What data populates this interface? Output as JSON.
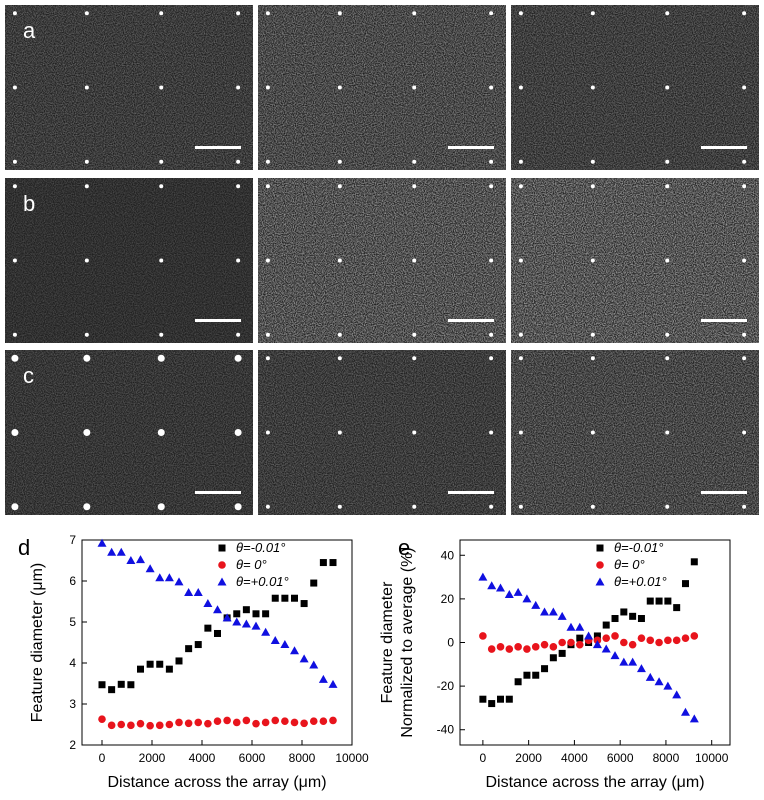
{
  "image_panels": {
    "labels": [
      "a",
      "b",
      "c"
    ]
  },
  "chart_data": [
    {
      "type": "scatter",
      "label": "d",
      "x_label": "Distance across the array (μm)",
      "y_label": [
        "Feature diameter (μm)"
      ],
      "x": [
        0,
        385,
        770,
        1155,
        1540,
        1925,
        2310,
        2695,
        3080,
        3465,
        3850,
        4235,
        4620,
        5005,
        5390,
        5775,
        6160,
        6545,
        6930,
        7315,
        7700,
        8085,
        8470,
        8855,
        9240
      ],
      "xlim": [
        -800,
        10000
      ],
      "xticks": [
        0,
        2000,
        4000,
        6000,
        8000,
        10000
      ],
      "ylim": [
        2,
        7
      ],
      "yticks": [
        2,
        3,
        4,
        5,
        6,
        7
      ],
      "legend": "top-right",
      "series": [
        {
          "name": "θ=-0.01°",
          "color": "#000000",
          "marker": "square",
          "values": [
            3.47,
            3.35,
            3.48,
            3.47,
            3.85,
            3.97,
            3.97,
            3.85,
            4.05,
            4.35,
            4.45,
            4.85,
            4.72,
            5.1,
            5.2,
            5.3,
            5.2,
            5.2,
            5.58,
            5.58,
            5.58,
            5.45,
            5.95,
            6.45,
            6.45
          ]
        },
        {
          "name": "θ=  0°",
          "color": "#e8141c",
          "marker": "circle",
          "values": [
            2.63,
            2.48,
            2.5,
            2.48,
            2.52,
            2.47,
            2.48,
            2.5,
            2.55,
            2.53,
            2.55,
            2.52,
            2.58,
            2.6,
            2.55,
            2.6,
            2.52,
            2.55,
            2.6,
            2.58,
            2.55,
            2.53,
            2.58,
            2.58,
            2.6
          ]
        },
        {
          "name": "θ=+0.01°",
          "color": "#1010e0",
          "marker": "triangle",
          "values": [
            6.92,
            6.7,
            6.7,
            6.5,
            6.52,
            6.3,
            6.08,
            6.08,
            5.98,
            5.72,
            5.72,
            5.45,
            5.3,
            5.1,
            5.0,
            4.95,
            4.9,
            4.75,
            4.55,
            4.45,
            4.3,
            4.1,
            3.95,
            3.6,
            3.48
          ]
        }
      ]
    },
    {
      "type": "scatter",
      "label": "e",
      "x_label": "Distance across the array (μm)",
      "y_label": [
        "Feature diameter",
        "Normalized to average (%)"
      ],
      "x": [
        0,
        385,
        770,
        1155,
        1540,
        1925,
        2310,
        2695,
        3080,
        3465,
        3850,
        4235,
        4620,
        5005,
        5390,
        5775,
        6160,
        6545,
        6930,
        7315,
        7700,
        8085,
        8470,
        8855,
        9240
      ],
      "xlim": [
        -1000,
        10800
      ],
      "xticks": [
        0,
        2000,
        4000,
        6000,
        8000,
        10000
      ],
      "ylim": [
        -47,
        47
      ],
      "yticks": [
        -40,
        -20,
        0,
        20,
        40
      ],
      "legend": "top-right",
      "series": [
        {
          "name": "θ=-0.01°",
          "color": "#000000",
          "marker": "square",
          "values": [
            -26,
            -28,
            -26,
            -26,
            -18,
            -15,
            -15,
            -12,
            -7,
            -5,
            -1,
            2,
            0,
            3,
            8,
            11,
            14,
            12,
            11,
            19,
            19,
            19,
            16,
            27,
            37
          ]
        },
        {
          "name": "θ=  0°",
          "color": "#e8141c",
          "marker": "circle",
          "values": [
            3,
            -3,
            -2,
            -3,
            -2,
            -3,
            -2,
            -1,
            -2,
            0,
            0,
            -1,
            1,
            1,
            2,
            3,
            0,
            -1,
            2,
            1,
            0,
            1,
            1,
            2,
            3
          ]
        },
        {
          "name": "θ=+0.01°",
          "color": "#1010e0",
          "marker": "triangle",
          "values": [
            30,
            26,
            25,
            22,
            23,
            20,
            17,
            14,
            14,
            12,
            7,
            7,
            3,
            -1,
            -3,
            -6,
            -9,
            -9,
            -12,
            -16,
            -18,
            -20,
            -24,
            -32,
            -35
          ]
        }
      ]
    }
  ]
}
